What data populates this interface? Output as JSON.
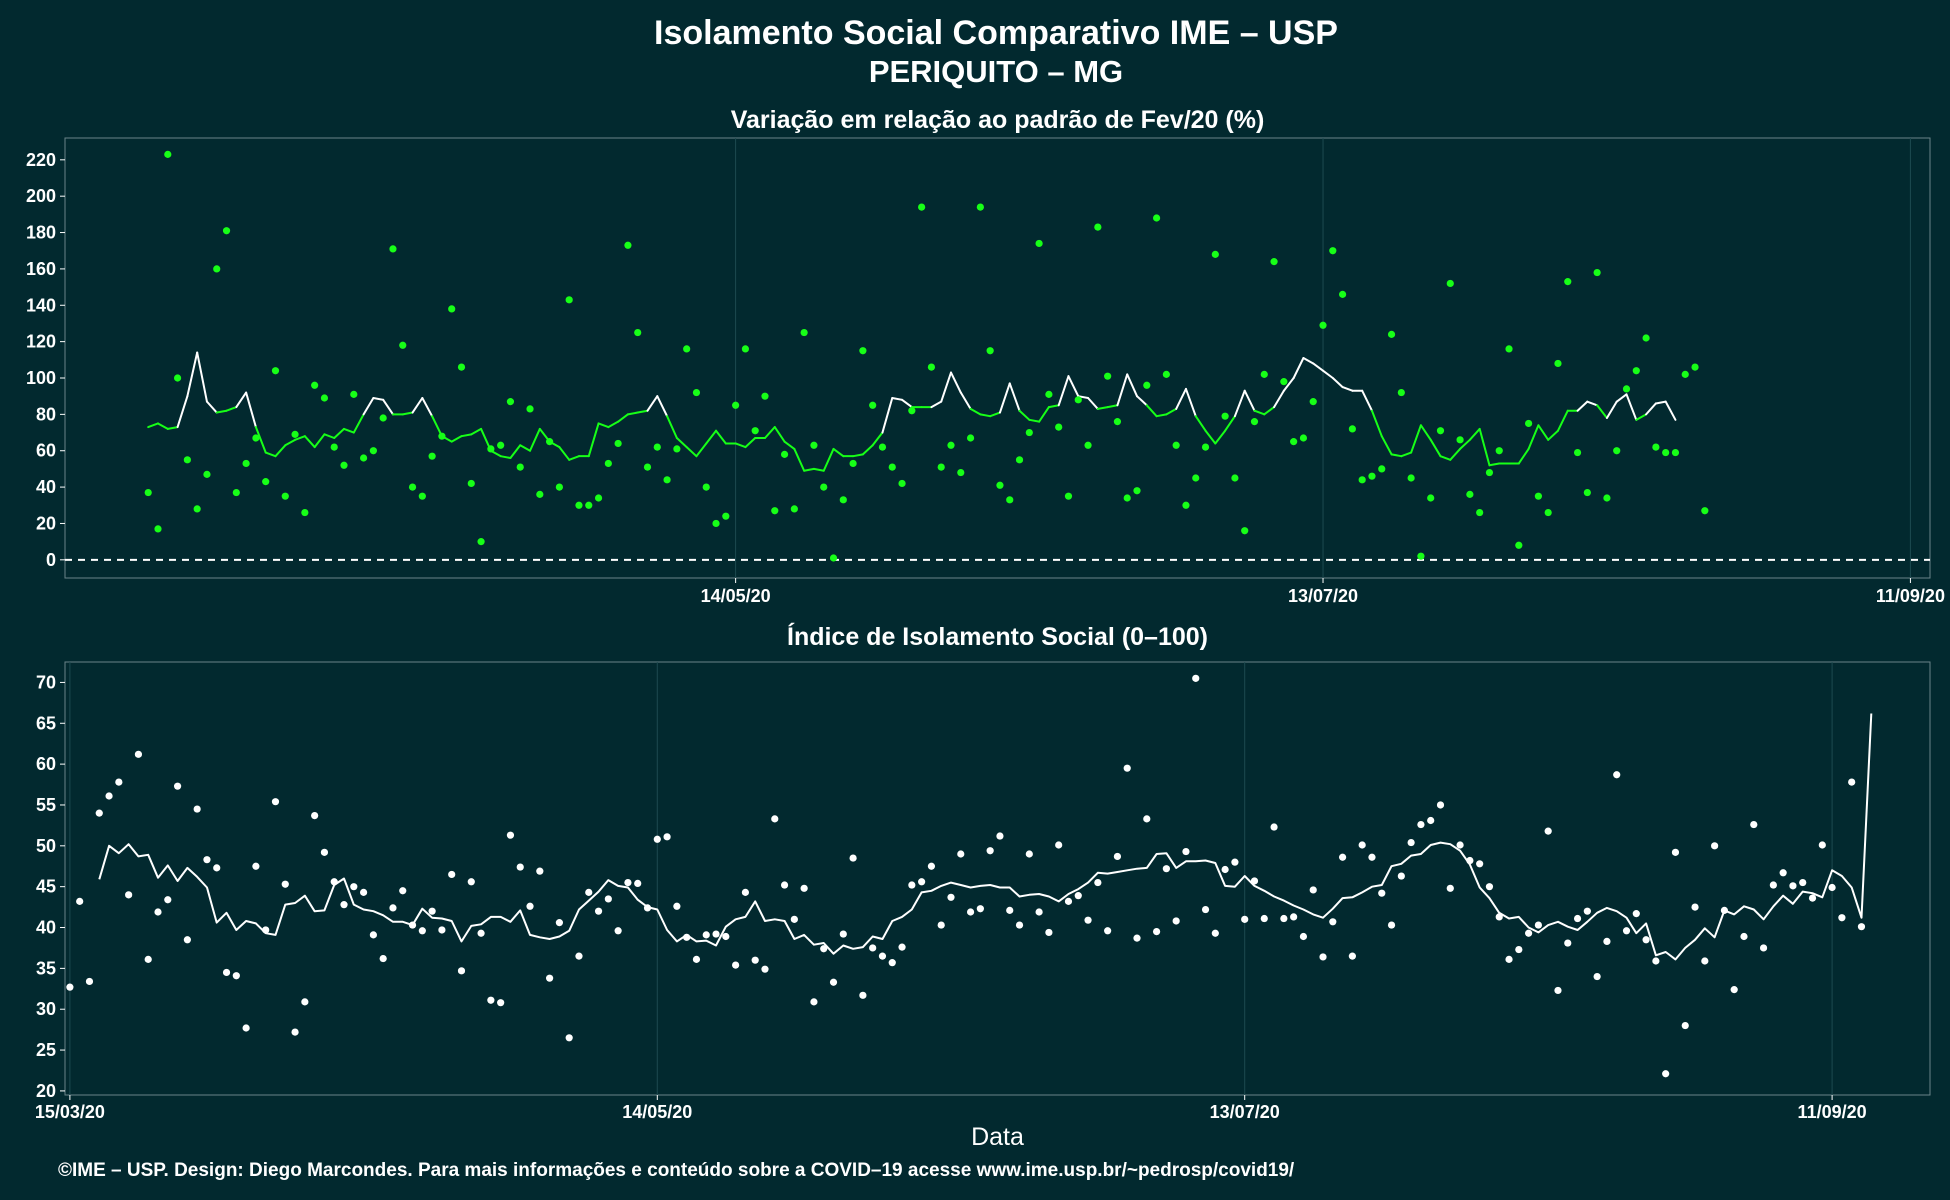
{
  "title": {
    "line1": "Isolamento Social Comparativo IME – USP",
    "line2": "PERIQUITO – MG"
  },
  "footer": "©IME – USP. Design: Diego Marcondes. Para mais informações e conteúdo sobre a COVID–19 acesse www.ime.usp.br/~pedrosp/covid19/",
  "colors": {
    "background": "#02292f",
    "grid": "#1d4a50",
    "variation_points": "#17ff17",
    "variation_line_high": "#ffffff",
    "variation_line_normal": "#17ff17",
    "index_points": "#ffffff",
    "index_line": "#ffffff"
  },
  "chart_data": [
    {
      "type": "scatter",
      "subtitle": "Variação em relação ao padrão de Fev/20 (%)",
      "xlabel": "",
      "ylabel": "",
      "start_date": "15/03/20",
      "ylim": [
        -10,
        232
      ],
      "yticks": [
        0,
        20,
        40,
        60,
        80,
        100,
        120,
        140,
        160,
        180,
        200,
        220
      ],
      "xticks": [
        {
          "day": 60,
          "label": "14/05/20"
        },
        {
          "day": 120,
          "label": "13/07/20"
        },
        {
          "day": 180,
          "label": "11/09/20"
        }
      ],
      "reference_line": 0,
      "grid": true,
      "line_highlight_threshold": 85,
      "points": [
        37,
        17,
        223,
        100,
        55,
        28,
        47,
        160,
        181,
        37,
        53,
        67,
        43,
        104,
        35,
        69,
        26,
        96,
        89,
        62,
        52,
        91,
        56,
        60,
        78,
        171,
        118,
        40,
        35,
        57,
        68,
        138,
        106,
        42,
        10,
        61,
        63,
        87,
        51,
        83,
        36,
        65,
        40,
        143,
        30,
        30,
        34,
        53,
        64,
        173,
        125,
        51,
        62,
        44,
        61,
        116,
        92,
        40,
        20,
        24,
        85,
        116,
        71,
        90,
        27,
        58,
        28,
        125,
        63,
        40,
        1,
        33,
        53,
        115,
        85,
        62,
        51,
        42,
        82,
        194,
        106,
        51,
        63,
        48,
        67,
        194,
        115,
        41,
        33,
        55,
        70,
        174,
        91,
        73,
        35,
        88,
        63,
        183,
        101,
        76,
        34,
        38,
        96,
        188,
        102,
        63,
        30,
        45,
        62,
        168,
        79,
        45,
        16,
        76,
        102,
        164,
        98,
        65,
        67,
        87,
        129,
        170,
        146,
        72,
        44,
        46,
        50,
        124,
        92,
        45,
        2,
        34,
        71,
        152,
        66,
        36,
        26,
        48,
        60,
        116,
        8,
        75,
        35,
        26,
        108,
        153,
        59,
        37,
        158,
        34,
        60,
        94,
        104,
        122,
        62,
        59,
        59,
        102,
        106,
        27
      ],
      "trend": [
        73,
        75,
        72,
        73,
        90,
        114,
        87,
        81,
        82,
        84,
        92,
        73,
        59,
        57,
        63,
        66,
        68,
        62,
        69,
        67,
        72,
        70,
        80,
        89,
        88,
        80,
        80,
        81,
        89,
        79,
        68,
        65,
        68,
        69,
        72,
        60,
        57,
        56,
        63,
        60,
        72,
        65,
        62,
        55,
        57,
        57,
        75,
        73,
        76,
        80,
        81,
        82,
        90,
        79,
        67,
        62,
        57,
        64,
        71,
        64,
        64,
        62,
        67,
        67,
        73,
        65,
        61,
        49,
        50,
        49,
        61,
        57,
        57,
        58,
        63,
        70,
        89,
        88,
        84,
        84,
        84,
        87,
        103,
        92,
        83,
        80,
        79,
        81,
        97,
        82,
        77,
        76,
        84,
        85,
        101,
        90,
        89,
        83,
        84,
        85,
        102,
        90,
        85,
        79,
        80,
        83,
        94,
        79,
        71,
        64,
        71,
        79,
        93,
        82,
        80,
        84,
        93,
        100,
        111,
        108,
        104,
        100,
        95,
        93,
        93,
        82,
        68,
        58,
        57,
        59,
        74,
        66,
        57,
        55,
        61,
        66,
        72,
        52,
        53,
        53,
        53,
        61,
        74,
        66,
        71,
        82,
        82,
        87,
        85,
        78,
        87,
        91,
        77,
        80,
        86,
        87,
        77
      ]
    },
    {
      "type": "scatter",
      "subtitle": "Índice de Isolamento Social (0–100)",
      "xlabel": "Data",
      "ylabel": "",
      "start_date": "15/03/20",
      "ylim": [
        19.5,
        72.5
      ],
      "yticks": [
        20,
        25,
        30,
        35,
        40,
        45,
        50,
        55,
        60,
        65,
        70
      ],
      "xticks": [
        {
          "day": 0,
          "label": "15/03/20"
        },
        {
          "day": 60,
          "label": "14/05/20"
        },
        {
          "day": 120,
          "label": "13/07/20"
        },
        {
          "day": 180,
          "label": "11/09/20"
        }
      ],
      "grid": true,
      "points": [
        32.7,
        43.2,
        33.4,
        54,
        56.1,
        57.8,
        44,
        61.2,
        36.1,
        41.9,
        43.4,
        57.3,
        38.5,
        54.5,
        48.3,
        47.3,
        34.5,
        34.1,
        27.7,
        47.5,
        39.7,
        55.4,
        45.3,
        27.2,
        30.9,
        53.7,
        49.2,
        45.6,
        42.8,
        45,
        44.3,
        39.1,
        36.2,
        42.4,
        44.5,
        40.3,
        39.6,
        42,
        39.7,
        46.5,
        34.7,
        45.6,
        39.3,
        31.1,
        30.8,
        51.3,
        47.4,
        42.6,
        46.9,
        33.8,
        40.6,
        26.5,
        36.5,
        44.3,
        42,
        43.5,
        39.6,
        45.5,
        45.4,
        42.4,
        50.8,
        51.1,
        42.6,
        38.8,
        36.1,
        39.1,
        39.2,
        38.9,
        35.4,
        44.3,
        36,
        34.9,
        53.3,
        45.2,
        41,
        44.8,
        30.9,
        37.4,
        33.3,
        39.2,
        48.5,
        31.7,
        37.5,
        36.5,
        35.7,
        37.6,
        45.2,
        45.6,
        47.5,
        40.3,
        43.7,
        49,
        41.9,
        42.3,
        49.4,
        51.2,
        42.1,
        40.3,
        49,
        41.9,
        39.4,
        50.1,
        43.2,
        43.9,
        40.9,
        45.5,
        39.6,
        48.7,
        59.5,
        38.7,
        53.3,
        39.5,
        47.2,
        40.8,
        49.3,
        70.5,
        42.2,
        39.3,
        47.1,
        48,
        41,
        45.7,
        41.1,
        52.3,
        41.1,
        41.3,
        38.9,
        44.6,
        36.4,
        40.7,
        48.6,
        36.5,
        50.1,
        48.6,
        44.2,
        40.3,
        46.3,
        50.4,
        52.6,
        53.1,
        55,
        44.8,
        50.1,
        48.2,
        47.8,
        45,
        41.3,
        36.1,
        37.3,
        39.3,
        40.3,
        51.8,
        32.3,
        38.1,
        41.1,
        42,
        34,
        38.3,
        58.7,
        39.6,
        41.7,
        38.5,
        35.9,
        22.1,
        49.2,
        28,
        42.5,
        35.9,
        50,
        42.1,
        32.4,
        38.9,
        52.6,
        37.5,
        45.2,
        46.7,
        45.1,
        45.5,
        43.6,
        50.1,
        44.9,
        41.2,
        57.8,
        40.1
      ],
      "trend": [
        45.9,
        50,
        49.1,
        50.2,
        48.7,
        48.9,
        46.1,
        47.6,
        45.7,
        47.3,
        46.2,
        44.9,
        40.6,
        41.8,
        39.7,
        40.8,
        40.5,
        39.3,
        39.1,
        42.8,
        43,
        43.9,
        42,
        42.1,
        45.2,
        46,
        42.8,
        42.2,
        42,
        41.5,
        40.7,
        40.7,
        40.3,
        42.3,
        41.2,
        41.1,
        40.8,
        38.3,
        40.2,
        40.4,
        41.3,
        41.3,
        40.7,
        42.1,
        39.1,
        38.8,
        38.6,
        38.9,
        39.6,
        42.2,
        43.3,
        44.4,
        45.8,
        45.1,
        44.9,
        43.4,
        42.5,
        42.2,
        39.7,
        38.3,
        39.1,
        38.3,
        38.4,
        37.8,
        40.1,
        41,
        41.3,
        43.2,
        40.8,
        41,
        40.8,
        38.6,
        39.1,
        37.9,
        38.1,
        36.8,
        37.8,
        37.4,
        37.6,
        38.9,
        38.6,
        40.8,
        41.3,
        42.2,
        44.3,
        44.5,
        45.1,
        45.5,
        45.2,
        44.9,
        45.1,
        45.2,
        44.9,
        44.9,
        43.8,
        44,
        44.1,
        43.8,
        43.2,
        44.1,
        44.7,
        45.5,
        46.7,
        46.6,
        46.8,
        47,
        47.2,
        47.3,
        49,
        49.1,
        47.3,
        48.1,
        48.1,
        48.2,
        47.9,
        45.1,
        45,
        46.3,
        45.1,
        44.5,
        43.8,
        43.3,
        42.7,
        42.2,
        41.6,
        41.2,
        42.3,
        43.6,
        43.7,
        44.3,
        45,
        45.2,
        47.5,
        47.8,
        48.8,
        49,
        50.1,
        50.4,
        50.2,
        49.4,
        47.7,
        44.9,
        43.6,
        41.8,
        41.1,
        41.3,
        40,
        39.4,
        40.3,
        40.7,
        40.1,
        39.7,
        40.7,
        41.8,
        42.4,
        42,
        41.2,
        39.3,
        40.5,
        36.6,
        37,
        36.1,
        37.5,
        38.5,
        39.9,
        38.8,
        42.1,
        41.6,
        42.6,
        42.2,
        41,
        42.6,
        43.9,
        42.9,
        44.4,
        44.2,
        43.7,
        47,
        46.3,
        44.9,
        41.2,
        66.2
      ]
    }
  ]
}
